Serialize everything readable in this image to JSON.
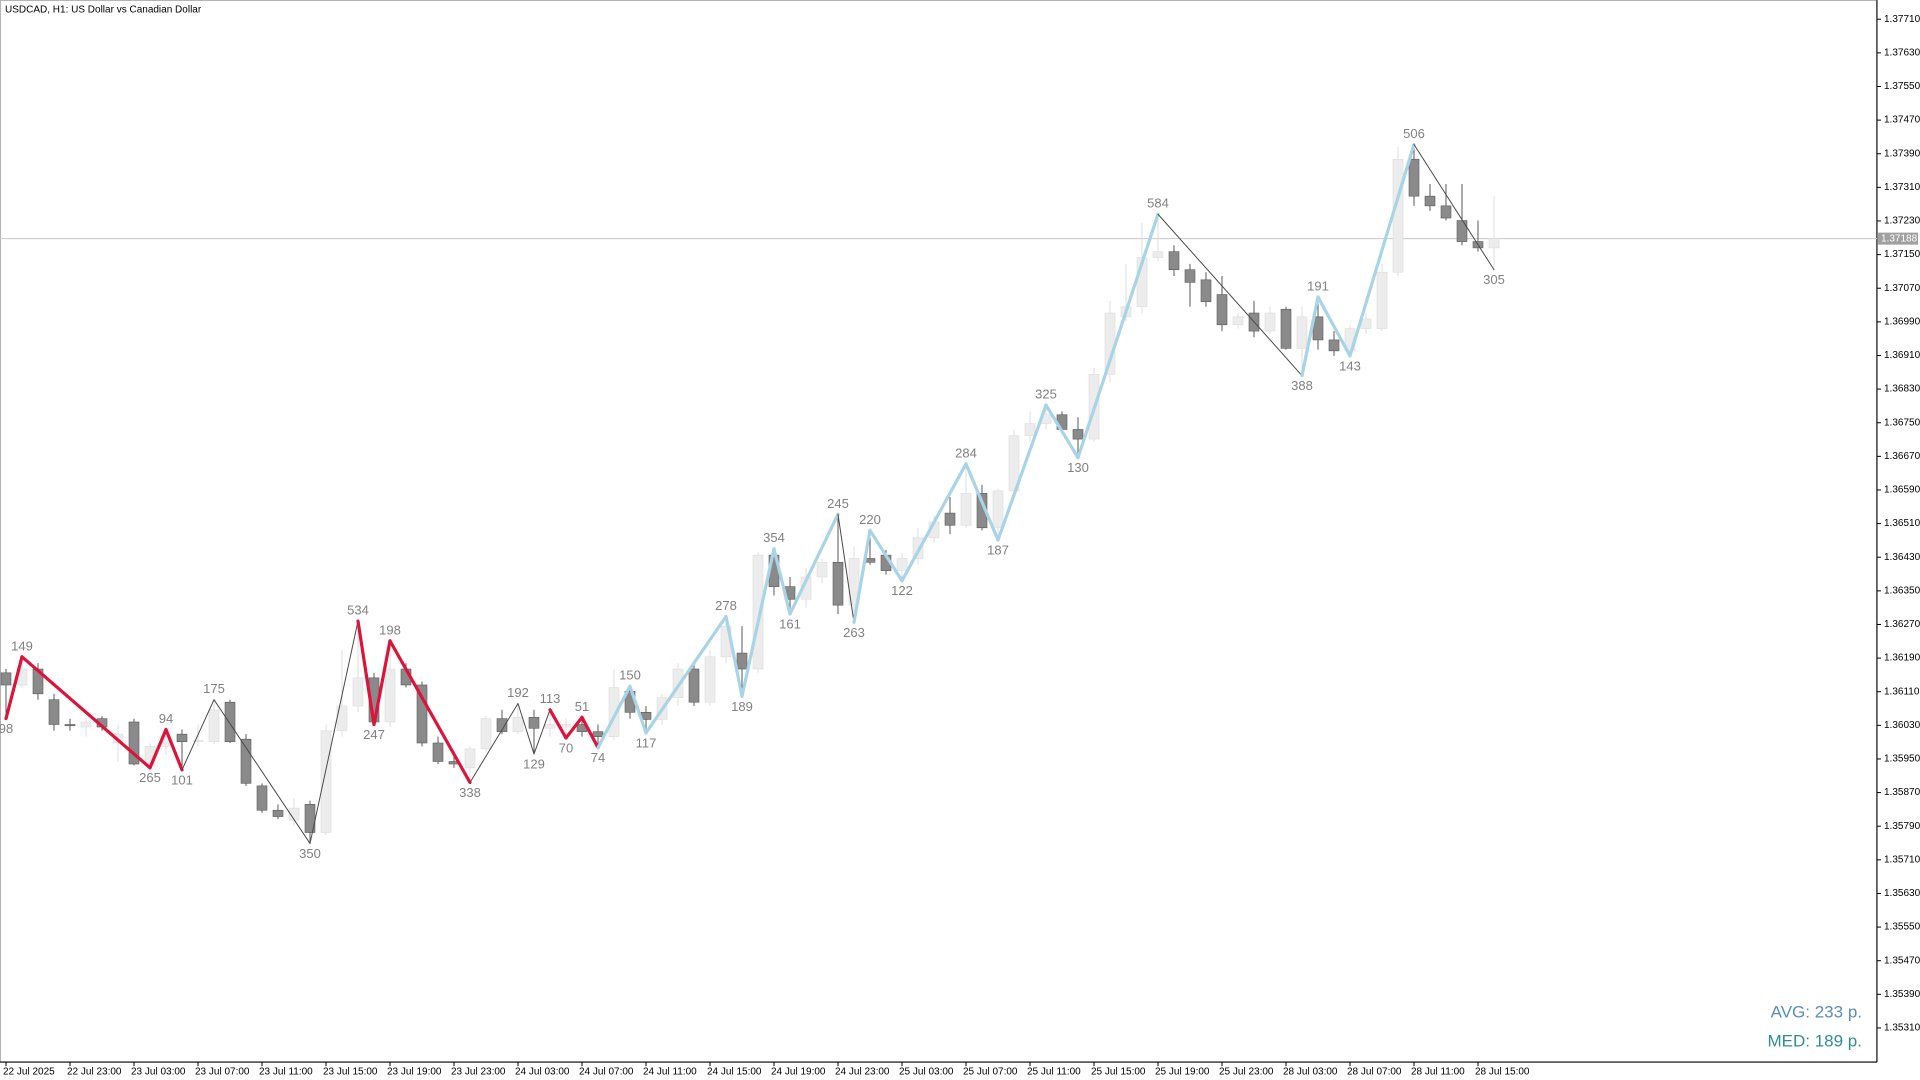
{
  "chart_data": {
    "type": "candlestick",
    "title": "USDCAD, H1:  US Dollar vs Canadian Dollar",
    "categories": [
      "22 Jul 2025",
      null,
      null,
      null,
      "22 Jul 23:00",
      null,
      null,
      null,
      "23 Jul 03:00",
      null,
      null,
      null,
      "23 Jul 07:00",
      null,
      null,
      null,
      "23 Jul 11:00",
      null,
      null,
      null,
      "23 Jul 15:00",
      null,
      null,
      null,
      "23 Jul 19:00",
      null,
      null,
      null,
      "23 Jul 23:00",
      null,
      null,
      null,
      "24 Jul 03:00",
      null,
      null,
      null,
      "24 Jul 07:00",
      null,
      null,
      null,
      "24 Jul 11:00",
      null,
      null,
      null,
      "24 Jul 15:00",
      null,
      null,
      null,
      "24 Jul 19:00",
      null,
      null,
      null,
      "24 Jul 23:00",
      null,
      null,
      null,
      "25 Jul 03:00",
      null,
      null,
      null,
      "25 Jul 07:00",
      null,
      null,
      null,
      "25 Jul 11:00",
      null,
      null,
      null,
      "25 Jul 15:00",
      null,
      null,
      null,
      "25 Jul 19:00",
      null,
      null,
      null,
      "25 Jul 23:00",
      null,
      null,
      null,
      "28 Jul 03:00",
      null,
      null,
      null,
      "28 Jul 07:00",
      null,
      null,
      null,
      "28 Jul 11:00",
      null,
      null,
      null,
      "28 Jul 15:00",
      null
    ],
    "open": [
      1.36155,
      1.36126,
      1.36164,
      1.36091,
      1.36032,
      1.36026,
      1.36046,
      1.35988,
      1.36038,
      1.35938,
      1.3598,
      1.36009,
      1.35991,
      1.35991,
      1.36085,
      1.35997,
      1.35886,
      1.35828,
      1.35804,
      1.35842,
      1.35775,
      1.36017,
      1.36076,
      1.36143,
      1.36038,
      1.36164,
      1.36126,
      1.35988,
      1.35944,
      1.35929,
      1.35974,
      1.36046,
      1.36015,
      1.36049,
      1.36023,
      1.36026,
      1.36032,
      1.36015,
      1.36003,
      1.36111,
      1.36061,
      1.36044,
      1.36096,
      1.36164,
      1.36085,
      1.36193,
      1.36202,
      1.36164,
      1.36435,
      1.3636,
      1.3633,
      1.36383,
      1.36418,
      1.36316,
      1.36427,
      1.36435,
      1.36398,
      1.36427,
      1.36476,
      1.36535,
      1.36506,
      1.36582,
      1.365,
      1.36588,
      1.36719,
      1.36748,
      1.36769,
      1.36734,
      1.36711,
      1.36865,
      1.37002,
      1.37026,
      1.37143,
      1.37157,
      1.37114,
      1.3709,
      1.37055,
      1.36983,
      1.37011,
      1.36968,
      1.3702,
      1.36927,
      1.37002,
      1.36947,
      1.36921,
      1.36974,
      1.36974,
      1.37108,
      1.37377,
      1.37289,
      1.37266,
      1.37231,
      1.37181,
      1.37166
    ],
    "high": [
      1.36164,
      1.36193,
      1.36178,
      1.36105,
      1.36046,
      1.36046,
      1.36052,
      1.36032,
      1.36046,
      1.35988,
      1.3602,
      1.3602,
      1.36032,
      1.36091,
      1.36091,
      1.36009,
      1.35892,
      1.35842,
      1.35857,
      1.35851,
      1.36032,
      1.36208,
      1.36278,
      1.36155,
      1.36231,
      1.36178,
      1.36134,
      1.36003,
      1.35968,
      1.3598,
      1.36052,
      1.36067,
      1.36082,
      1.36067,
      1.36067,
      1.36046,
      1.36049,
      1.36032,
      1.36164,
      1.36123,
      1.36076,
      1.36105,
      1.36178,
      1.36178,
      1.36208,
      1.36289,
      1.36266,
      1.36441,
      1.3645,
      1.36383,
      1.36404,
      1.36427,
      1.36532,
      1.36456,
      1.36494,
      1.36447,
      1.36441,
      1.365,
      1.36529,
      1.36573,
      1.36652,
      1.36602,
      1.36593,
      1.36734,
      1.36777,
      1.36792,
      1.36777,
      1.36763,
      1.3688,
      1.3704,
      1.37128,
      1.37225,
      1.37246,
      1.37172,
      1.37128,
      1.37108,
      1.37099,
      1.37011,
      1.3704,
      1.37026,
      1.37026,
      1.37026,
      1.37049,
      1.36968,
      1.36983,
      1.37011,
      1.37128,
      1.37406,
      1.37412,
      1.37318,
      1.37318,
      1.37318,
      1.37231,
      1.37289
    ],
    "low": [
      1.36046,
      1.3612,
      1.36091,
      1.36017,
      1.36017,
      1.36003,
      1.36017,
      1.35944,
      1.35935,
      1.35929,
      1.35959,
      1.35924,
      1.3598,
      1.35985,
      1.35988,
      1.35886,
      1.35822,
      1.35807,
      1.35792,
      1.35749,
      1.35769,
      1.36003,
      1.36061,
      1.36032,
      1.36026,
      1.3612,
      1.3598,
      1.35938,
      1.35929,
      1.35894,
      1.35968,
      1.36009,
      1.36009,
      1.35962,
      1.36003,
      1.36,
      1.36003,
      1.35977,
      1.35994,
      1.36046,
      1.36012,
      1.36032,
      1.36076,
      1.36076,
      1.36076,
      1.36178,
      1.36099,
      1.36155,
      1.36339,
      1.36295,
      1.3631,
      1.36368,
      1.36295,
      1.36275,
      1.36412,
      1.36389,
      1.36374,
      1.36412,
      1.36465,
      1.36485,
      1.365,
      1.36494,
      1.36471,
      1.36573,
      1.36704,
      1.36734,
      1.36728,
      1.36667,
      1.36704,
      1.36845,
      1.36991,
      1.37011,
      1.37134,
      1.37099,
      1.37026,
      1.37026,
      1.36968,
      1.36974,
      1.36953,
      1.36962,
      1.36924,
      1.36862,
      1.36924,
      1.36909,
      1.36909,
      1.36962,
      1.36968,
      1.37099,
      1.37266,
      1.37254,
      1.37231,
      1.37172,
      1.37157,
      1.37114
    ],
    "close": [
      1.36126,
      1.36164,
      1.36105,
      1.36032,
      1.36029,
      1.36038,
      1.36026,
      1.36009,
      1.35938,
      1.3598,
      1.36003,
      1.35991,
      1.35994,
      1.36067,
      1.35991,
      1.35892,
      1.35828,
      1.35813,
      1.35833,
      1.35775,
      1.36017,
      1.36076,
      1.36143,
      1.36038,
      1.36164,
      1.36126,
      1.35988,
      1.35944,
      1.35938,
      1.35974,
      1.36046,
      1.36015,
      1.36049,
      1.36023,
      1.36032,
      1.36032,
      1.36015,
      1.36003,
      1.3612,
      1.36061,
      1.36044,
      1.36096,
      1.36164,
      1.36085,
      1.36193,
      1.36266,
      1.36164,
      1.36435,
      1.3636,
      1.3633,
      1.36383,
      1.36418,
      1.36316,
      1.36427,
      1.36418,
      1.36398,
      1.36427,
      1.36476,
      1.36514,
      1.36506,
      1.36582,
      1.365,
      1.36588,
      1.36719,
      1.36748,
      1.36769,
      1.36734,
      1.36711,
      1.36865,
      1.37011,
      1.37026,
      1.37143,
      1.37157,
      1.37114,
      1.37084,
      1.37038,
      1.36983,
      1.37002,
      1.36968,
      1.37011,
      1.36927,
      1.37002,
      1.36947,
      1.36921,
      1.36974,
      1.36997,
      1.37108,
      1.37377,
      1.37289,
      1.37266,
      1.37237,
      1.37181,
      1.37166,
      1.37188
    ],
    "candle_colors": {
      "up": "#ececec",
      "up_wick": "#dddddd",
      "down": "#8a8a8a",
      "down_wick": "#5a5a5a"
    },
    "zigzag": {
      "values": [
        1.36046,
        1.36193,
        null,
        null,
        null,
        null,
        null,
        null,
        null,
        1.35929,
        1.3602,
        1.35924,
        null,
        1.36091,
        null,
        null,
        null,
        null,
        null,
        1.35749,
        null,
        null,
        1.36278,
        1.36032,
        1.36231,
        null,
        null,
        null,
        null,
        1.35894,
        null,
        null,
        1.36082,
        1.35962,
        1.36067,
        1.36,
        1.36049,
        1.35977,
        null,
        1.36123,
        1.36012,
        null,
        null,
        null,
        null,
        1.36289,
        1.36099,
        null,
        1.3645,
        1.36295,
        null,
        null,
        1.36532,
        1.36275,
        1.36494,
        null,
        1.36374,
        null,
        null,
        null,
        1.36652,
        null,
        1.36471,
        null,
        null,
        1.36792,
        null,
        1.36667,
        null,
        null,
        null,
        null,
        1.37246,
        null,
        null,
        null,
        null,
        null,
        null,
        null,
        null,
        1.36862,
        1.37049,
        null,
        1.36909,
        null,
        null,
        null,
        1.37412,
        null,
        null,
        null,
        null,
        1.37114
      ],
      "labels": [
        98,
        149,
        null,
        null,
        null,
        null,
        null,
        null,
        null,
        265,
        94,
        101,
        null,
        175,
        null,
        null,
        null,
        null,
        null,
        350,
        null,
        null,
        534,
        247,
        198,
        null,
        null,
        null,
        null,
        338,
        null,
        null,
        192,
        129,
        113,
        70,
        51,
        74,
        null,
        150,
        117,
        null,
        null,
        null,
        null,
        278,
        189,
        null,
        354,
        161,
        null,
        null,
        245,
        263,
        220,
        null,
        122,
        null,
        null,
        null,
        284,
        null,
        187,
        null,
        null,
        325,
        null,
        130,
        null,
        null,
        null,
        null,
        584,
        null,
        null,
        null,
        null,
        null,
        null,
        null,
        null,
        388,
        191,
        null,
        143,
        null,
        null,
        null,
        506,
        null,
        null,
        null,
        null,
        305
      ],
      "kinds": [
        null,
        "bear",
        null,
        null,
        null,
        null,
        null,
        null,
        null,
        "bear",
        "bear",
        "bear",
        null,
        "neutral",
        null,
        null,
        null,
        null,
        null,
        "neutral",
        null,
        null,
        "neutral",
        "bear",
        "bear",
        null,
        null,
        null,
        null,
        "bear",
        null,
        null,
        "neutral",
        "neutral",
        "neutral",
        "bear",
        "bear",
        "bear",
        null,
        "bull",
        "bull",
        null,
        null,
        null,
        null,
        "bull",
        "bull",
        null,
        "bull",
        "bull",
        null,
        null,
        "bull",
        "neutral",
        "bull",
        null,
        "bull",
        null,
        null,
        null,
        "bull",
        null,
        "bull",
        null,
        null,
        "bull",
        null,
        "bull",
        null,
        null,
        null,
        null,
        "bull",
        null,
        null,
        null,
        null,
        null,
        null,
        null,
        null,
        "neutral",
        "bull",
        null,
        "bull",
        null,
        null,
        null,
        "bull",
        null,
        null,
        null,
        null,
        "neutral"
      ],
      "colors": {
        "bear": "#dc143c",
        "bull": "#a8d4e6",
        "neutral": "#4a4a4a"
      }
    },
    "current_price": {
      "value": 1.37188,
      "label": "1.37188"
    },
    "ylim": [
      1.35229,
      1.37751
    ],
    "yticks": [
      {
        "value": 1.3531,
        "label": "1.35310"
      },
      {
        "value": 1.3539,
        "label": "1.35390"
      },
      {
        "value": 1.3547,
        "label": "1.35470"
      },
      {
        "value": 1.3555,
        "label": "1.35550"
      },
      {
        "value": 1.3563,
        "label": "1.35630"
      },
      {
        "value": 1.3571,
        "label": "1.35710"
      },
      {
        "value": 1.3579,
        "label": "1.35790"
      },
      {
        "value": 1.3587,
        "label": "1.35870"
      },
      {
        "value": 1.3595,
        "label": "1.35950"
      },
      {
        "value": 1.3603,
        "label": "1.36030"
      },
      {
        "value": 1.3611,
        "label": "1.36110"
      },
      {
        "value": 1.3619,
        "label": "1.36190"
      },
      {
        "value": 1.3627,
        "label": "1.36270"
      },
      {
        "value": 1.3635,
        "label": "1.36350"
      },
      {
        "value": 1.3643,
        "label": "1.36430"
      },
      {
        "value": 1.3651,
        "label": "1.36510"
      },
      {
        "value": 1.3659,
        "label": "1.36590"
      },
      {
        "value": 1.3667,
        "label": "1.36670"
      },
      {
        "value": 1.3675,
        "label": "1.36750"
      },
      {
        "value": 1.3683,
        "label": "1.36830"
      },
      {
        "value": 1.3691,
        "label": "1.36910"
      },
      {
        "value": 1.3699,
        "label": "1.36990"
      },
      {
        "value": 1.3707,
        "label": "1.37070"
      },
      {
        "value": 1.3715,
        "label": "1.37150"
      },
      {
        "value": 1.3723,
        "label": "1.37230"
      },
      {
        "value": 1.3731,
        "label": "1.37310"
      },
      {
        "value": 1.3739,
        "label": "1.37390"
      },
      {
        "value": 1.3747,
        "label": "1.37470"
      },
      {
        "value": 1.3755,
        "label": "1.37550"
      },
      {
        "value": 1.3763,
        "label": "1.37630"
      },
      {
        "value": 1.3771,
        "label": "1.37710"
      }
    ],
    "grid": false,
    "annotations": [
      {
        "text": "AVG: 233 p.",
        "color": "#5b8db8"
      },
      {
        "text": "MED: 189 p.",
        "color": "#2f8f8f"
      }
    ]
  }
}
